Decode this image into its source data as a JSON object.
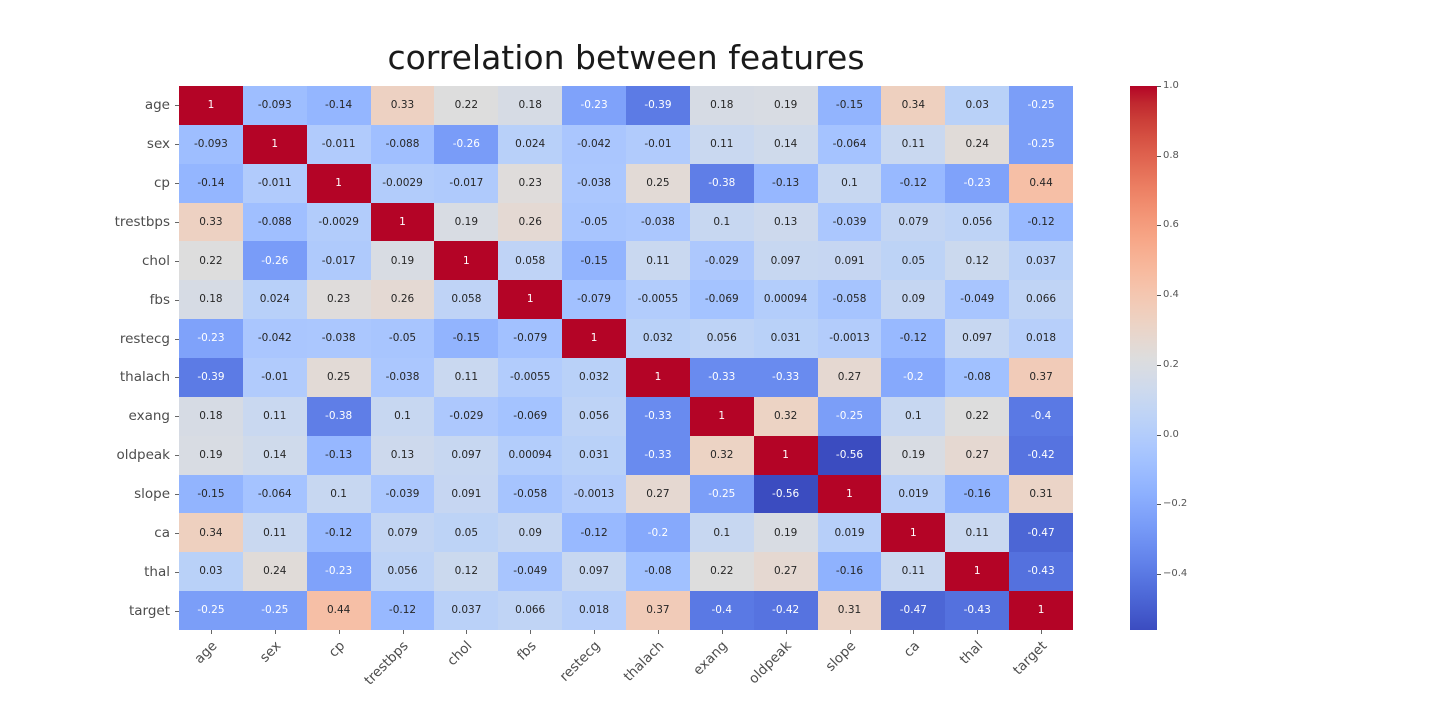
{
  "chart_data": {
    "type": "heatmap",
    "title": "correlation between features",
    "labels": [
      "age",
      "sex",
      "cp",
      "trestbps",
      "chol",
      "fbs",
      "restecg",
      "thalach",
      "exang",
      "oldpeak",
      "slope",
      "ca",
      "thal",
      "target"
    ],
    "matrix": [
      [
        "1",
        "-0.093",
        "-0.14",
        "0.33",
        "0.22",
        "0.18",
        "-0.23",
        "-0.39",
        "0.18",
        "0.19",
        "-0.15",
        "0.34",
        "0.03",
        "-0.25"
      ],
      [
        "-0.093",
        "1",
        "-0.011",
        "-0.088",
        "-0.26",
        "0.024",
        "-0.042",
        "-0.01",
        "0.11",
        "0.14",
        "-0.064",
        "0.11",
        "0.24",
        "-0.25"
      ],
      [
        "-0.14",
        "-0.011",
        "1",
        "-0.0029",
        "-0.017",
        "0.23",
        "-0.038",
        "0.25",
        "-0.38",
        "-0.13",
        "0.1",
        "-0.12",
        "-0.23",
        "0.44"
      ],
      [
        "0.33",
        "-0.088",
        "-0.0029",
        "1",
        "0.19",
        "0.26",
        "-0.05",
        "-0.038",
        "0.1",
        "0.13",
        "-0.039",
        "0.079",
        "0.056",
        "-0.12"
      ],
      [
        "0.22",
        "-0.26",
        "-0.017",
        "0.19",
        "1",
        "0.058",
        "-0.15",
        "0.11",
        "-0.029",
        "0.097",
        "0.091",
        "0.05",
        "0.12",
        "0.037"
      ],
      [
        "0.18",
        "0.024",
        "0.23",
        "0.26",
        "0.058",
        "1",
        "-0.079",
        "-0.0055",
        "-0.069",
        "0.00094",
        "-0.058",
        "0.09",
        "-0.049",
        "0.066"
      ],
      [
        "-0.23",
        "-0.042",
        "-0.038",
        "-0.05",
        "-0.15",
        "-0.079",
        "1",
        "0.032",
        "0.056",
        "0.031",
        "-0.0013",
        "-0.12",
        "0.097",
        "0.018"
      ],
      [
        "-0.39",
        "-0.01",
        "0.25",
        "-0.038",
        "0.11",
        "-0.0055",
        "0.032",
        "1",
        "-0.33",
        "-0.33",
        "0.27",
        "-0.2",
        "-0.08",
        "0.37"
      ],
      [
        "0.18",
        "0.11",
        "-0.38",
        "0.1",
        "-0.029",
        "-0.069",
        "0.056",
        "-0.33",
        "1",
        "0.32",
        "-0.25",
        "0.1",
        "0.22",
        "-0.4"
      ],
      [
        "0.19",
        "0.14",
        "-0.13",
        "0.13",
        "0.097",
        "0.00094",
        "0.031",
        "-0.33",
        "0.32",
        "1",
        "-0.56",
        "0.19",
        "0.27",
        "-0.42"
      ],
      [
        "-0.15",
        "-0.064",
        "0.1",
        "-0.039",
        "0.091",
        "-0.058",
        "-0.0013",
        "0.27",
        "-0.25",
        "-0.56",
        "1",
        "0.019",
        "-0.16",
        "0.31"
      ],
      [
        "0.34",
        "0.11",
        "-0.12",
        "0.079",
        "0.05",
        "0.09",
        "-0.12",
        "-0.2",
        "0.1",
        "0.19",
        "0.019",
        "1",
        "0.11",
        "-0.47"
      ],
      [
        "0.03",
        "0.24",
        "-0.23",
        "0.056",
        "0.12",
        "-0.049",
        "0.097",
        "-0.08",
        "0.22",
        "0.27",
        "-0.16",
        "0.11",
        "1",
        "-0.43"
      ],
      [
        "-0.25",
        "-0.25",
        "0.44",
        "-0.12",
        "0.037",
        "0.066",
        "0.018",
        "0.37",
        "-0.4",
        "-0.42",
        "0.31",
        "-0.47",
        "-0.43",
        "1"
      ]
    ],
    "colormap": "coolwarm",
    "vmin": -0.56,
    "vmax": 1.0,
    "colorbar_ticks": [
      "1.0",
      "0.8",
      "0.6",
      "0.4",
      "0.2",
      "0.0",
      "−0.2",
      "−0.4"
    ],
    "legend_position": "right",
    "grid": false,
    "annotated": true,
    "xlabel": "",
    "ylabel": ""
  },
  "colors": {
    "background": "#ffffff",
    "title_color": "#1a1a1a",
    "tick_label_color": "#4d4d4d",
    "annotation_dark": "#262626",
    "annotation_light": "#ffffff"
  }
}
